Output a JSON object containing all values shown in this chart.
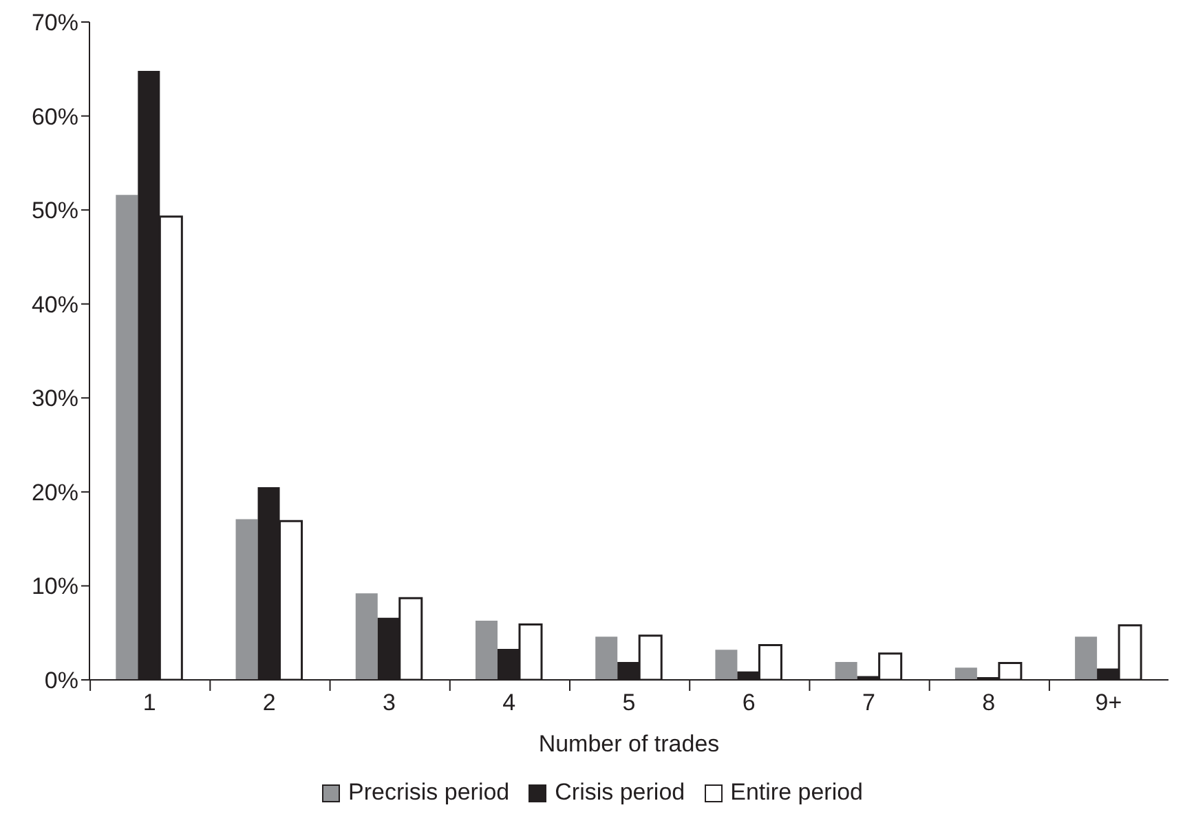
{
  "chart_data": {
    "type": "bar",
    "xlabel": "Number of trades",
    "categories": [
      "1",
      "2",
      "3",
      "4",
      "5",
      "6",
      "7",
      "8",
      "9+"
    ],
    "series": [
      {
        "name": "Precrisis period",
        "color": "#939598",
        "values": [
          51.6,
          17.1,
          9.2,
          6.3,
          4.6,
          3.2,
          1.9,
          1.3,
          4.6
        ]
      },
      {
        "name": "Crisis period",
        "color": "#231f20",
        "values": [
          64.8,
          20.5,
          6.6,
          3.3,
          1.9,
          0.9,
          0.4,
          0.3,
          1.2
        ]
      },
      {
        "name": "Entire period",
        "color": "#ffffff",
        "values": [
          49.3,
          16.9,
          8.7,
          5.9,
          4.7,
          3.7,
          2.8,
          1.8,
          5.8
        ]
      }
    ],
    "ylim": [
      0,
      70
    ],
    "yticks": [
      {
        "value": 0,
        "label": "0%"
      },
      {
        "value": 10,
        "label": "10%"
      },
      {
        "value": 20,
        "label": "20%"
      },
      {
        "value": 30,
        "label": "30%"
      },
      {
        "value": 40,
        "label": "40%"
      },
      {
        "value": 50,
        "label": "50%"
      },
      {
        "value": 60,
        "label": "60%"
      },
      {
        "value": 70,
        "label": "70%"
      }
    ],
    "grid": false,
    "legend": "bottom"
  }
}
